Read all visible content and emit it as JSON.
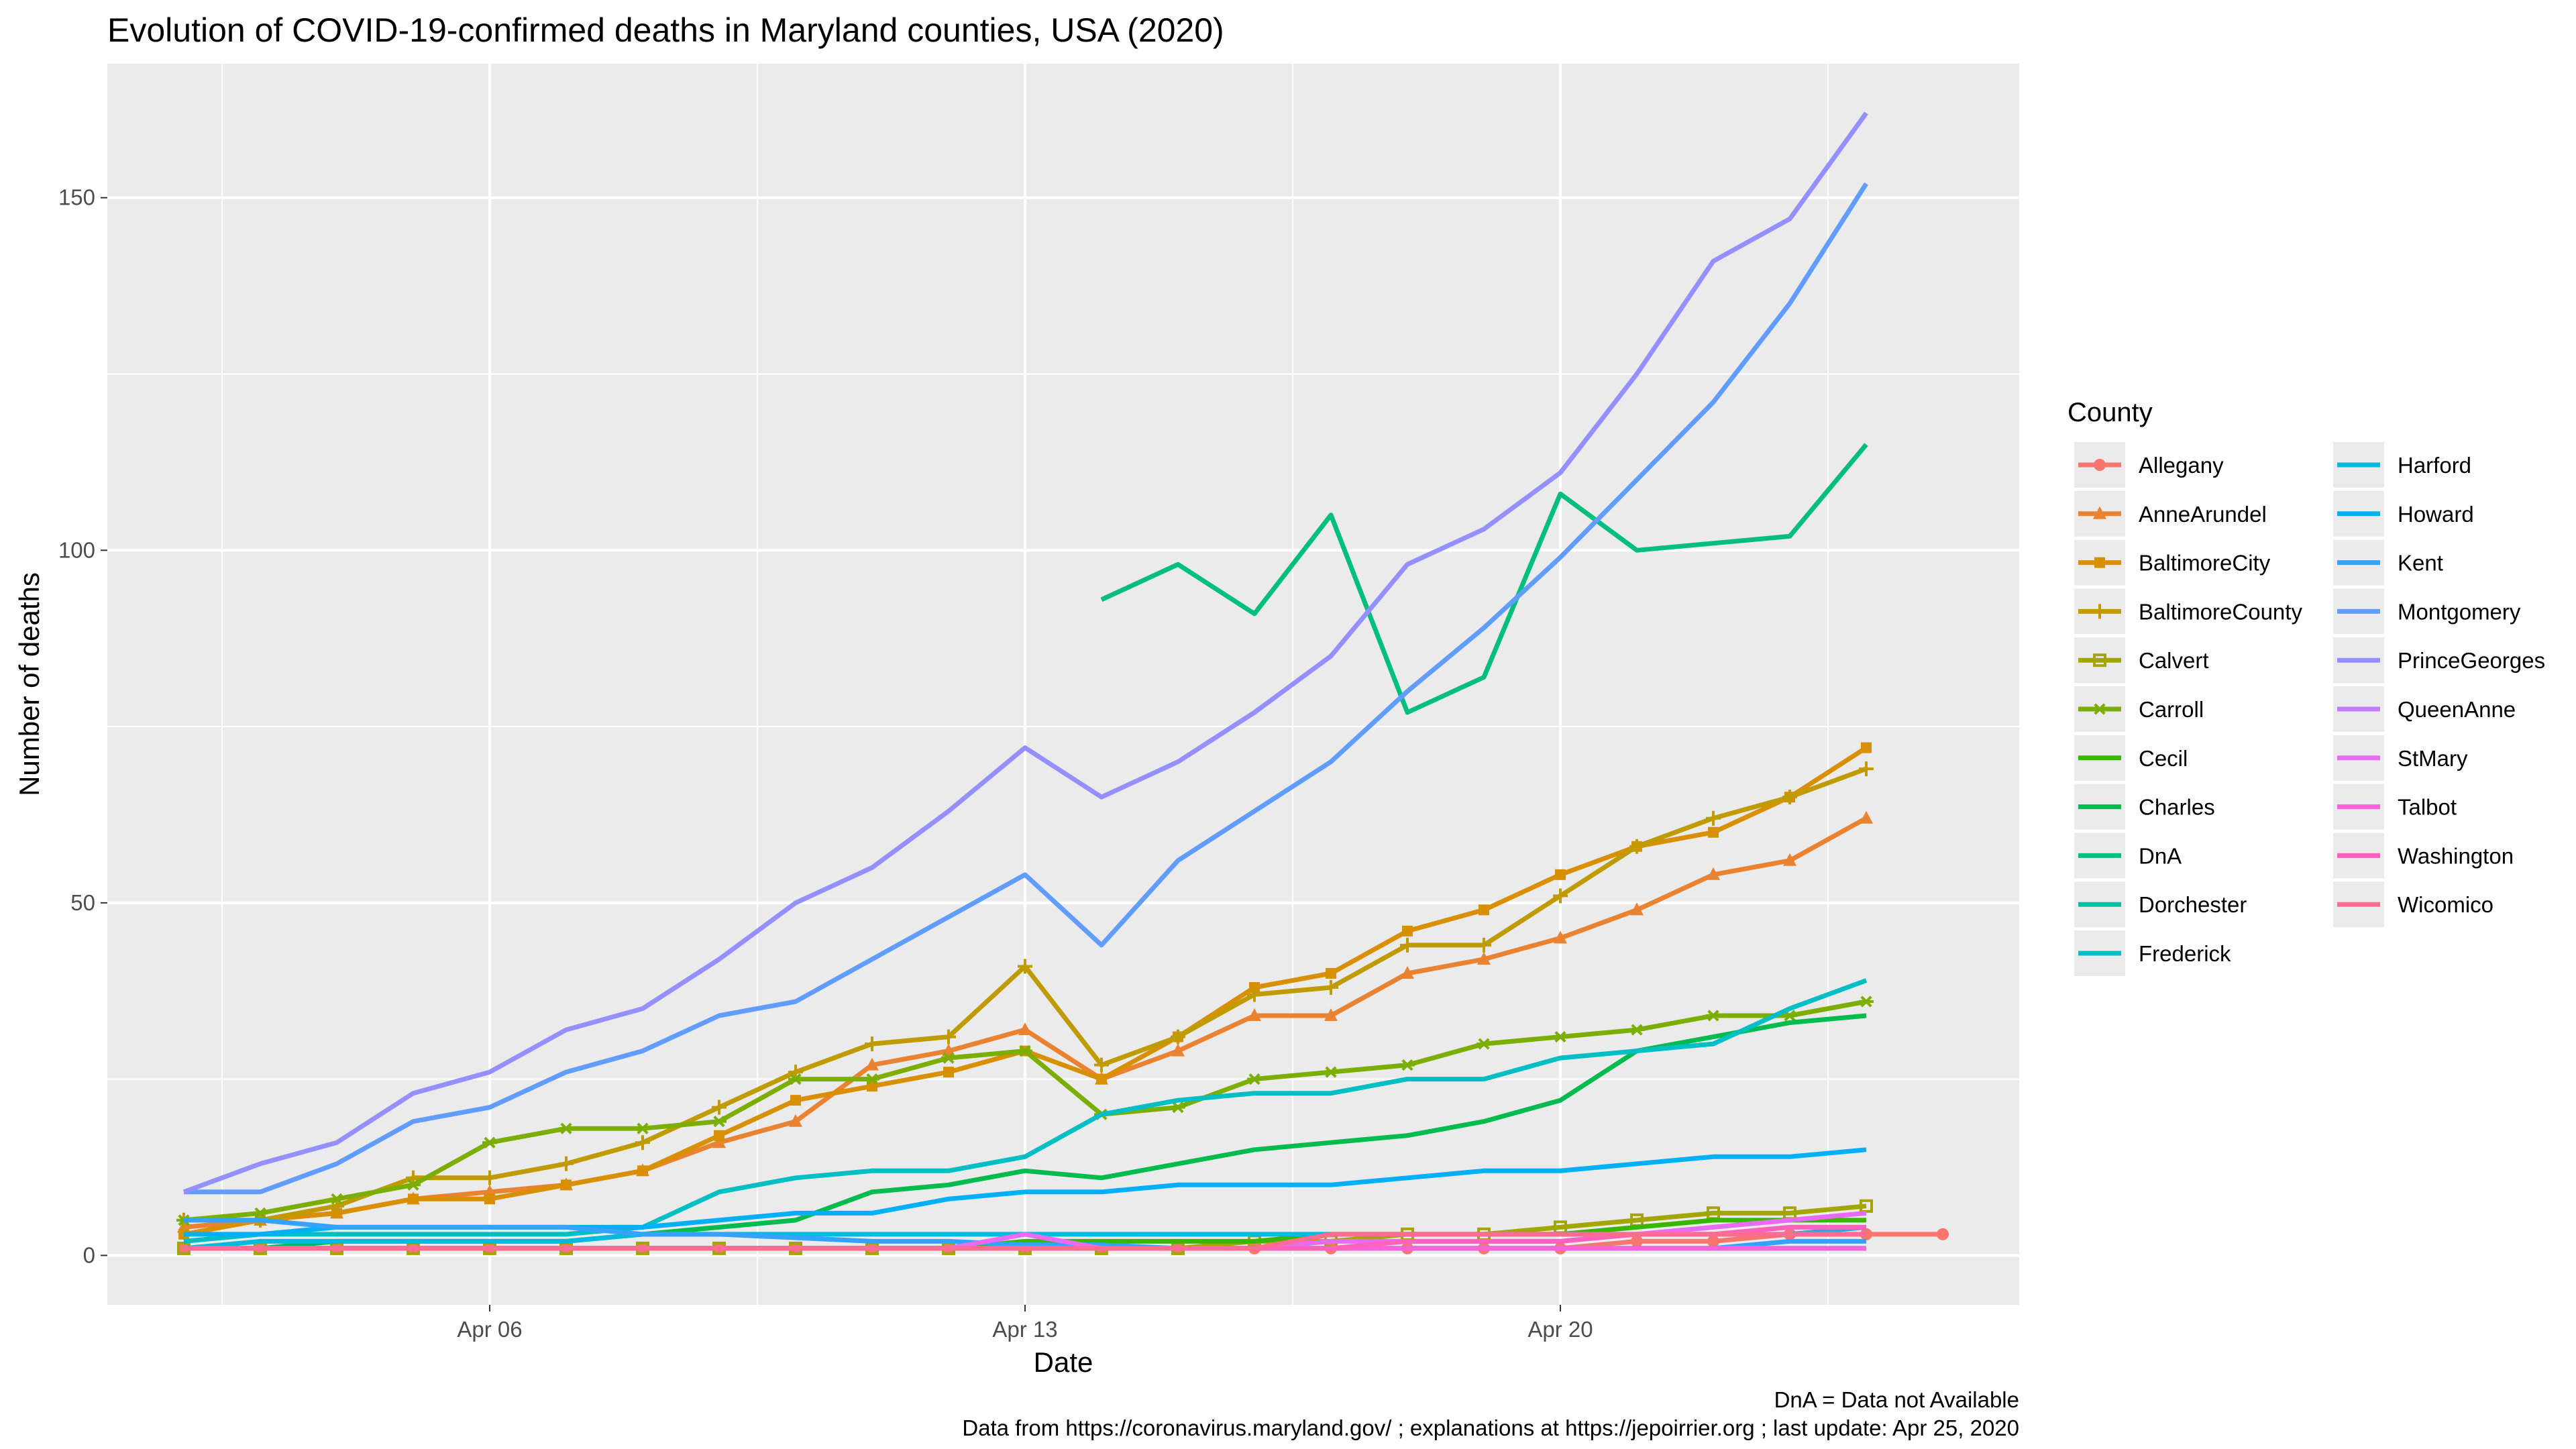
{
  "chart_data": {
    "type": "line",
    "title": "Evolution of COVID-19-confirmed deaths in Maryland counties, USA (2020)",
    "xlabel": "Date",
    "ylabel": "Number of deaths",
    "x_ticks": [
      "Apr 06",
      "Apr 13",
      "Apr 20"
    ],
    "y_ticks": [
      0,
      50,
      100,
      150
    ],
    "xlim": [
      "2020-04-01",
      "2020-04-26"
    ],
    "ylim": [
      -7,
      169
    ],
    "grid": true,
    "legend_title": "County",
    "legend_position": "right",
    "caption_lines": [
      "DnA = Data not Available",
      "Data from https://coronavirus.maryland.gov/ ; explanations at https://jepoirrier.org ; last update: Apr 25, 2020"
    ],
    "x": [
      "2020-04-02",
      "2020-04-03",
      "2020-04-04",
      "2020-04-05",
      "2020-04-06",
      "2020-04-07",
      "2020-04-08",
      "2020-04-09",
      "2020-04-10",
      "2020-04-11",
      "2020-04-12",
      "2020-04-13",
      "2020-04-14",
      "2020-04-15",
      "2020-04-16",
      "2020-04-17",
      "2020-04-18",
      "2020-04-19",
      "2020-04-20",
      "2020-04-21",
      "2020-04-22",
      "2020-04-23",
      "2020-04-24",
      "2020-04-25"
    ],
    "series": [
      {
        "name": "Allegany",
        "color": "#F8766D",
        "shape": "circle",
        "values": [
          1,
          1,
          1,
          1,
          1,
          1,
          1,
          1,
          1,
          1,
          1,
          1,
          1,
          1,
          1,
          1,
          1,
          1,
          1,
          2,
          2,
          3,
          3,
          3
        ]
      },
      {
        "name": "AnneArundel",
        "color": "#EA8331",
        "shape": "triangle",
        "values": [
          4,
          5,
          6,
          8,
          9,
          10,
          12,
          16,
          19,
          27,
          29,
          32,
          25,
          29,
          34,
          34,
          40,
          42,
          45,
          49,
          54,
          56,
          62,
          null
        ]
      },
      {
        "name": "BaltimoreCity",
        "color": "#D89000",
        "shape": "square",
        "values": [
          3,
          5,
          6,
          8,
          8,
          10,
          12,
          17,
          22,
          24,
          26,
          29,
          25,
          31,
          38,
          40,
          46,
          49,
          54,
          58,
          60,
          65,
          72,
          null
        ]
      },
      {
        "name": "BaltimoreCounty",
        "color": "#C09B00",
        "shape": "plus",
        "values": [
          5,
          5,
          7,
          11,
          11,
          13,
          16,
          21,
          26,
          30,
          31,
          41,
          27,
          31,
          37,
          38,
          44,
          44,
          51,
          58,
          62,
          65,
          69,
          null
        ]
      },
      {
        "name": "Calvert",
        "color": "#A3A500",
        "shape": "square-open",
        "values": [
          1,
          1,
          1,
          1,
          1,
          1,
          1,
          1,
          1,
          1,
          1,
          1,
          1,
          1,
          2,
          2,
          3,
          3,
          4,
          5,
          6,
          6,
          7,
          null
        ]
      },
      {
        "name": "Carroll",
        "color": "#7CAE00",
        "shape": "asterisk",
        "values": [
          5,
          6,
          8,
          10,
          16,
          18,
          18,
          19,
          25,
          25,
          28,
          29,
          20,
          21,
          25,
          26,
          27,
          30,
          31,
          32,
          34,
          34,
          36,
          null
        ]
      },
      {
        "name": "Cecil",
        "color": "#39B600",
        "shape": "none",
        "values": [
          1,
          1,
          1,
          1,
          1,
          1,
          1,
          1,
          1,
          1,
          1,
          2,
          2,
          2,
          2,
          3,
          3,
          3,
          3,
          4,
          5,
          5,
          5,
          null
        ]
      },
      {
        "name": "Charles",
        "color": "#00BB4E",
        "shape": "none",
        "values": [
          1,
          1,
          2,
          2,
          2,
          2,
          3,
          4,
          5,
          9,
          10,
          12,
          11,
          13,
          15,
          16,
          17,
          19,
          22,
          29,
          31,
          33,
          34,
          null
        ]
      },
      {
        "name": "DnA",
        "color": "#00BF7D",
        "shape": "none",
        "values": [
          null,
          null,
          null,
          null,
          null,
          null,
          null,
          null,
          null,
          null,
          null,
          null,
          93,
          98,
          91,
          105,
          77,
          82,
          108,
          100,
          101,
          102,
          115,
          null
        ]
      },
      {
        "name": "Dorchester",
        "color": "#00C1A3",
        "shape": "none",
        "values": [
          1,
          1,
          1,
          1,
          1,
          1,
          1,
          1,
          1,
          1,
          1,
          1,
          1,
          1,
          1,
          1,
          1,
          1,
          1,
          1,
          1,
          1,
          1,
          null
        ]
      },
      {
        "name": "Frederick",
        "color": "#00BFC4",
        "shape": "none",
        "values": [
          2,
          3,
          3,
          3,
          3,
          3,
          4,
          9,
          11,
          12,
          12,
          14,
          20,
          22,
          23,
          23,
          25,
          25,
          28,
          29,
          30,
          35,
          39,
          null
        ]
      },
      {
        "name": "Harford",
        "color": "#00BAE0",
        "shape": "none",
        "values": [
          1,
          2,
          2,
          2,
          2,
          2,
          3,
          3,
          3,
          3,
          3,
          3,
          3,
          3,
          3,
          3,
          3,
          3,
          3,
          3,
          3,
          3,
          4,
          null
        ]
      },
      {
        "name": "Howard",
        "color": "#00B0F6",
        "shape": "none",
        "values": [
          3,
          3,
          4,
          4,
          4,
          4,
          4,
          5,
          6,
          6,
          8,
          9,
          9,
          10,
          10,
          10,
          11,
          12,
          12,
          13,
          14,
          14,
          15,
          null
        ]
      },
      {
        "name": "Kent",
        "color": "#35A2FF",
        "shape": "none",
        "values": [
          5,
          5,
          4,
          4,
          4,
          4,
          3,
          3,
          2.5,
          2,
          2,
          1.5,
          1.5,
          1,
          1,
          1,
          1,
          1,
          1,
          1,
          1,
          2,
          2,
          null
        ]
      },
      {
        "name": "Montgomery",
        "color": "#619CFF",
        "shape": "none",
        "values": [
          9,
          9,
          13,
          19,
          21,
          26,
          29,
          34,
          36,
          42,
          48,
          54,
          44,
          56,
          63,
          70,
          80,
          89,
          99,
          110,
          121,
          135,
          152,
          null
        ]
      },
      {
        "name": "PrinceGeorges",
        "color": "#9590FF",
        "shape": "none",
        "values": [
          9,
          13,
          16,
          23,
          26,
          32,
          35,
          42,
          50,
          55,
          63,
          72,
          65,
          70,
          77,
          85,
          98,
          103,
          111,
          125,
          141,
          147,
          162,
          null
        ]
      },
      {
        "name": "QueenAnne",
        "color": "#C77CFF",
        "shape": "none",
        "values": [
          1,
          1,
          1,
          1,
          1,
          1,
          1,
          1,
          1,
          1,
          1,
          1,
          1,
          1,
          1,
          1,
          1,
          1,
          1,
          1,
          1,
          1,
          1,
          null
        ]
      },
      {
        "name": "StMary",
        "color": "#E76BF3",
        "shape": "none",
        "values": [
          1,
          1,
          1,
          1,
          1,
          1,
          1,
          1,
          1,
          1,
          1,
          3,
          1,
          1,
          1,
          2,
          2,
          2,
          2,
          3,
          4,
          5,
          6,
          null
        ]
      },
      {
        "name": "Talbot",
        "color": "#FA62DB",
        "shape": "none",
        "values": [
          1,
          1,
          1,
          1,
          1,
          1,
          1,
          1,
          1,
          1,
          1,
          1,
          1,
          1,
          1,
          1,
          1,
          1,
          1,
          1,
          1,
          1,
          1,
          null
        ]
      },
      {
        "name": "Washington",
        "color": "#FF62BC",
        "shape": "none",
        "values": [
          1,
          1,
          1,
          1,
          1,
          1,
          1,
          1,
          1,
          1,
          1,
          1,
          1,
          1,
          1,
          1,
          2,
          2,
          2,
          3,
          3,
          4,
          4,
          null
        ]
      },
      {
        "name": "Wicomico",
        "color": "#FF6C91",
        "shape": "none",
        "values": [
          1,
          1,
          1,
          1,
          1,
          1,
          1,
          1,
          1,
          1,
          1,
          1,
          1,
          1,
          1,
          3,
          3,
          3,
          3,
          3,
          3,
          3,
          3,
          null
        ]
      }
    ]
  }
}
